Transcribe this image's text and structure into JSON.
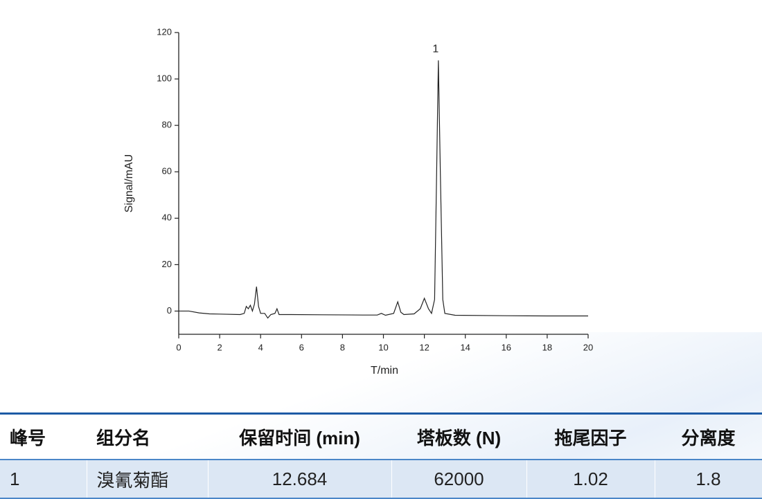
{
  "chart_data": {
    "type": "line",
    "xlabel": "T/min",
    "ylabel": "Signal/mAU",
    "peak_label": "1",
    "xlim": [
      0,
      20
    ],
    "xticks": [
      0,
      2,
      4,
      6,
      8,
      10,
      12,
      14,
      16,
      18,
      20
    ],
    "ylim": [
      -10,
      120
    ],
    "yticks": [
      0,
      20,
      40,
      60,
      80,
      100,
      120
    ],
    "x": [
      0,
      0.5,
      1,
      1.5,
      2,
      3,
      3.2,
      3.3,
      3.4,
      3.5,
      3.6,
      3.7,
      3.8,
      3.9,
      4.0,
      4.2,
      4.35,
      4.5,
      4.7,
      4.8,
      4.9,
      5.5,
      7,
      9,
      9.7,
      9.9,
      10.1,
      10.5,
      10.7,
      10.85,
      11,
      11.5,
      11.8,
      12,
      12.2,
      12.35,
      12.5,
      12.6,
      12.684,
      12.78,
      12.9,
      13.0,
      13.5,
      16,
      18,
      20
    ],
    "series": [
      {
        "name": "signal",
        "color": "#222222",
        "values": [
          0,
          0,
          -0.8,
          -1.2,
          -1.3,
          -1.5,
          -1,
          2,
          1,
          2.5,
          0,
          3,
          10.5,
          2,
          -1,
          -1,
          -3,
          -1.5,
          -1,
          1,
          -1.5,
          -1.5,
          -1.6,
          -1.7,
          -1.7,
          -1,
          -1.8,
          -1,
          4,
          -0.5,
          -1.5,
          -1.2,
          1,
          5.5,
          1,
          -1,
          5,
          60,
          108,
          60,
          5,
          -1,
          -1.8,
          -2,
          -2.1,
          -2.1
        ]
      }
    ]
  },
  "table": {
    "headers": [
      "峰号",
      "组分名",
      "保留时间 (min)",
      "塔板数 (N)",
      "拖尾因子",
      "分离度"
    ],
    "rows": [
      [
        "1",
        "溴氰菊酯",
        "12.684",
        "62000",
        "1.02",
        "1.8"
      ]
    ]
  }
}
